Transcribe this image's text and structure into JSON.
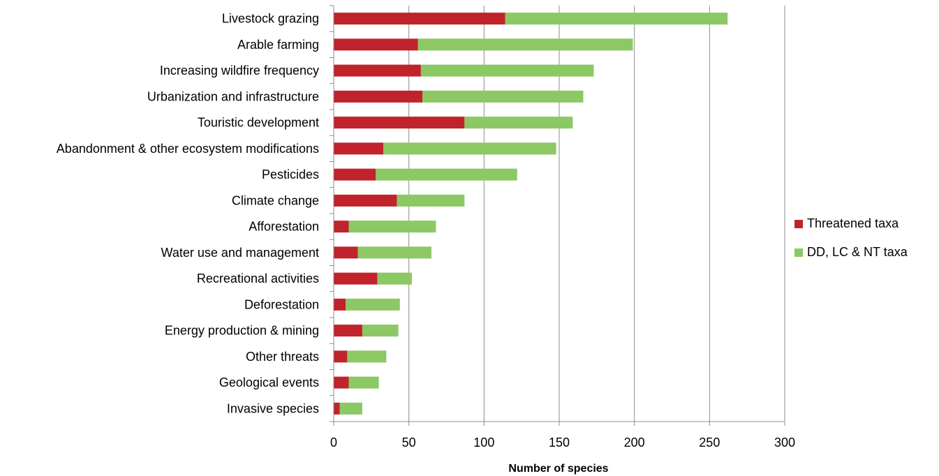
{
  "chart_data": {
    "type": "bar",
    "orientation": "horizontal",
    "stacked": true,
    "title": "",
    "xlabel": "Number of species",
    "ylabel": "",
    "xlim": [
      0,
      300
    ],
    "xticks": [
      0,
      50,
      100,
      150,
      200,
      250,
      300
    ],
    "grid": "vertical",
    "legend_position": "right",
    "categories": [
      "Livestock grazing",
      "Arable farming",
      "Increasing wildfire frequency",
      "Urbanization and infrastructure",
      "Touristic development",
      "Abandonment & other ecosystem modifications",
      "Pesticides",
      "Climate change",
      "Afforestation",
      "Water use and management",
      "Recreational activities",
      "Deforestation",
      "Energy production & mining",
      "Other threats",
      "Geological events",
      "Invasive species"
    ],
    "series": [
      {
        "name": "Threatened taxa",
        "color": "#c0232c",
        "values": [
          114,
          56,
          58,
          59,
          87,
          33,
          28,
          42,
          10,
          16,
          29,
          8,
          19,
          9,
          10,
          4
        ]
      },
      {
        "name": "DD, LC & NT taxa",
        "color": "#8cc864",
        "values": [
          148,
          143,
          115,
          107,
          72,
          115,
          94,
          45,
          58,
          49,
          23,
          36,
          24,
          26,
          20,
          15
        ]
      }
    ]
  }
}
